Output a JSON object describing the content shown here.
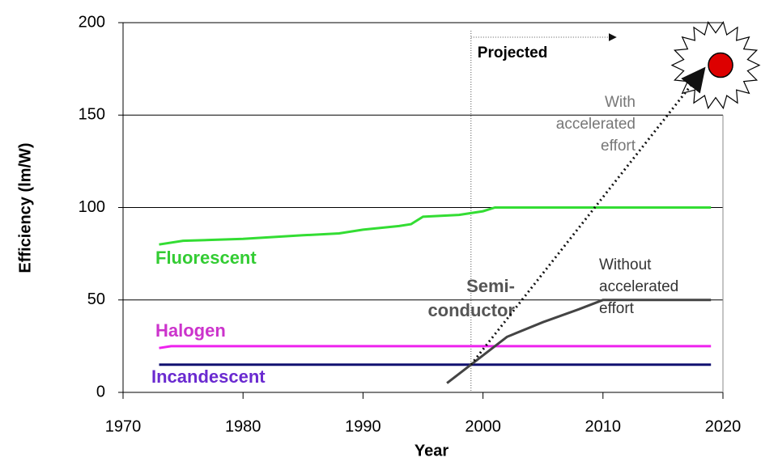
{
  "chart_data": {
    "type": "line",
    "xlabel": "Year",
    "ylabel": "Efficiency (lm/W)",
    "xlim": [
      1970,
      2020
    ],
    "xticks": [
      1970,
      1980,
      1990,
      2000,
      2010,
      2020
    ],
    "ylim": [
      0,
      200
    ],
    "yticks": [
      0,
      50,
      100,
      150,
      200
    ],
    "grid": true,
    "projected_from": 1999,
    "series": [
      {
        "name": [
          "Fluorescent"
        ],
        "color": "#33dd33",
        "x": [
          1973,
          1975,
          1980,
          1985,
          1988,
          1990,
          1993,
          1994,
          1995,
          1998,
          2000,
          2001,
          2010,
          2019
        ],
        "values": [
          80,
          82,
          83,
          85,
          86,
          88,
          90,
          91,
          95,
          96,
          98,
          100,
          100,
          100
        ]
      },
      {
        "name": [
          "Halogen"
        ],
        "color": "#ee22ee",
        "x": [
          1973,
          1974,
          2019
        ],
        "values": [
          24,
          25,
          25
        ]
      },
      {
        "name": [
          "Incandescent"
        ],
        "color": "#101070",
        "x": [
          1973,
          2019
        ],
        "values": [
          15,
          15
        ]
      },
      {
        "name": [
          "Semi-",
          "conductor"
        ],
        "color": "#444444",
        "x": [
          1997,
          1999,
          2002,
          2005,
          2008,
          2010,
          2019
        ],
        "values": [
          5,
          15,
          30,
          38,
          45,
          50,
          50
        ]
      },
      {
        "name": [
          "With",
          "accelerated",
          "effort"
        ],
        "color": "#111111",
        "dashed": true,
        "arrow": true,
        "x": [
          1999,
          2018.3
        ],
        "values": [
          15,
          174
        ]
      }
    ],
    "annotations": [
      {
        "text": "Projected"
      }
    ],
    "target": {
      "x": 2019.8,
      "y": 177
    },
    "notes": [
      {
        "lines": [
          "Without",
          "accelerated",
          "effort"
        ]
      }
    ]
  }
}
